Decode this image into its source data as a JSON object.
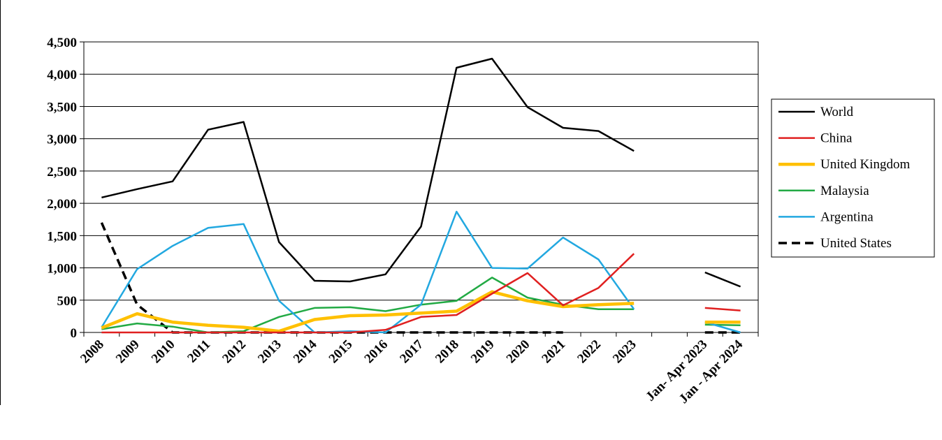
{
  "chart_data": {
    "type": "line",
    "title": "",
    "xlabel": "",
    "ylabel": "",
    "ylim": [
      0,
      4500
    ],
    "y_ticks": [
      "0",
      "500",
      "1,000",
      "1,500",
      "2,000",
      "2,500",
      "3,000",
      "3,500",
      "4,000",
      "4,500"
    ],
    "y_tick_values": [
      0,
      500,
      1000,
      1500,
      2000,
      2500,
      3000,
      3500,
      4000,
      4500
    ],
    "categories": [
      "2008",
      "2009",
      "2010",
      "2011",
      "2012",
      "2013",
      "2014",
      "2015",
      "2016",
      "2017",
      "2018",
      "2019",
      "2020",
      "2021",
      "2022",
      "2023",
      "",
      "Jan- Apr 2023",
      "Jan - Apr 2024"
    ],
    "grid": "horizontal",
    "legend_position": "right",
    "series": [
      {
        "name": "World",
        "color": "#000000",
        "style": "solid",
        "values": [
          2090,
          2220,
          2340,
          3140,
          3260,
          1400,
          800,
          790,
          900,
          1640,
          4100,
          4240,
          3490,
          3170,
          3120,
          2810,
          null,
          930,
          710
        ]
      },
      {
        "name": "China",
        "color": "#e02020",
        "style": "solid",
        "values": [
          0,
          0,
          0,
          0,
          0,
          0,
          0,
          0,
          40,
          240,
          270,
          600,
          920,
          420,
          690,
          1220,
          null,
          380,
          340
        ]
      },
      {
        "name": "United Kingdom",
        "color": "#ffc000",
        "style": "thick",
        "values": [
          70,
          290,
          160,
          110,
          80,
          20,
          200,
          260,
          270,
          300,
          330,
          630,
          490,
          400,
          430,
          450,
          null,
          160,
          160
        ]
      },
      {
        "name": "Malaysia",
        "color": "#22aa44",
        "style": "solid",
        "values": [
          50,
          140,
          90,
          0,
          20,
          240,
          380,
          390,
          330,
          430,
          490,
          850,
          540,
          430,
          360,
          360,
          null,
          120,
          110
        ]
      },
      {
        "name": "Argentina",
        "color": "#22a8e0",
        "style": "solid",
        "values": [
          80,
          980,
          1340,
          1620,
          1680,
          490,
          0,
          20,
          0,
          430,
          1870,
          1000,
          990,
          1470,
          1130,
          360,
          null,
          160,
          0
        ]
      },
      {
        "name": "United States",
        "color": "#000000",
        "style": "dashed",
        "values": [
          1700,
          430,
          0,
          0,
          0,
          0,
          0,
          0,
          0,
          0,
          0,
          0,
          0,
          0,
          null,
          null,
          null,
          0,
          0
        ]
      }
    ]
  }
}
